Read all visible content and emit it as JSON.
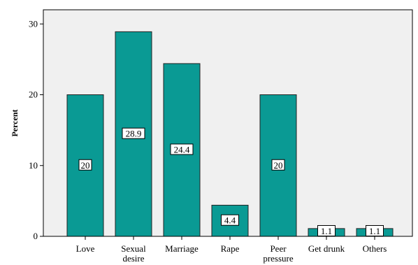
{
  "colors": {
    "plot_background": "#f0f0f0",
    "bar_fill": "#0a9a94",
    "bar_stroke": "#222222",
    "axis": "#000000",
    "label_box": "#ffffff"
  },
  "chart_data": {
    "type": "bar",
    "title": "",
    "xlabel": "",
    "ylabel": "Percent",
    "ylim": [
      0,
      32
    ],
    "yticks": [
      0,
      10,
      20,
      30
    ],
    "grid": false,
    "legend": "none",
    "categories": [
      [
        "Love"
      ],
      [
        "Sexual",
        "desire"
      ],
      [
        "Marriage"
      ],
      [
        "Rape"
      ],
      [
        "Peer",
        "pressure"
      ],
      [
        "Get drunk"
      ],
      [
        "Others"
      ]
    ],
    "values": [
      20,
      28.9,
      24.4,
      4.4,
      20,
      1.1,
      1.1
    ],
    "data_labels": [
      "20",
      "28.9",
      "24.4",
      "4.4",
      "20",
      "1.1",
      "1.1"
    ]
  }
}
